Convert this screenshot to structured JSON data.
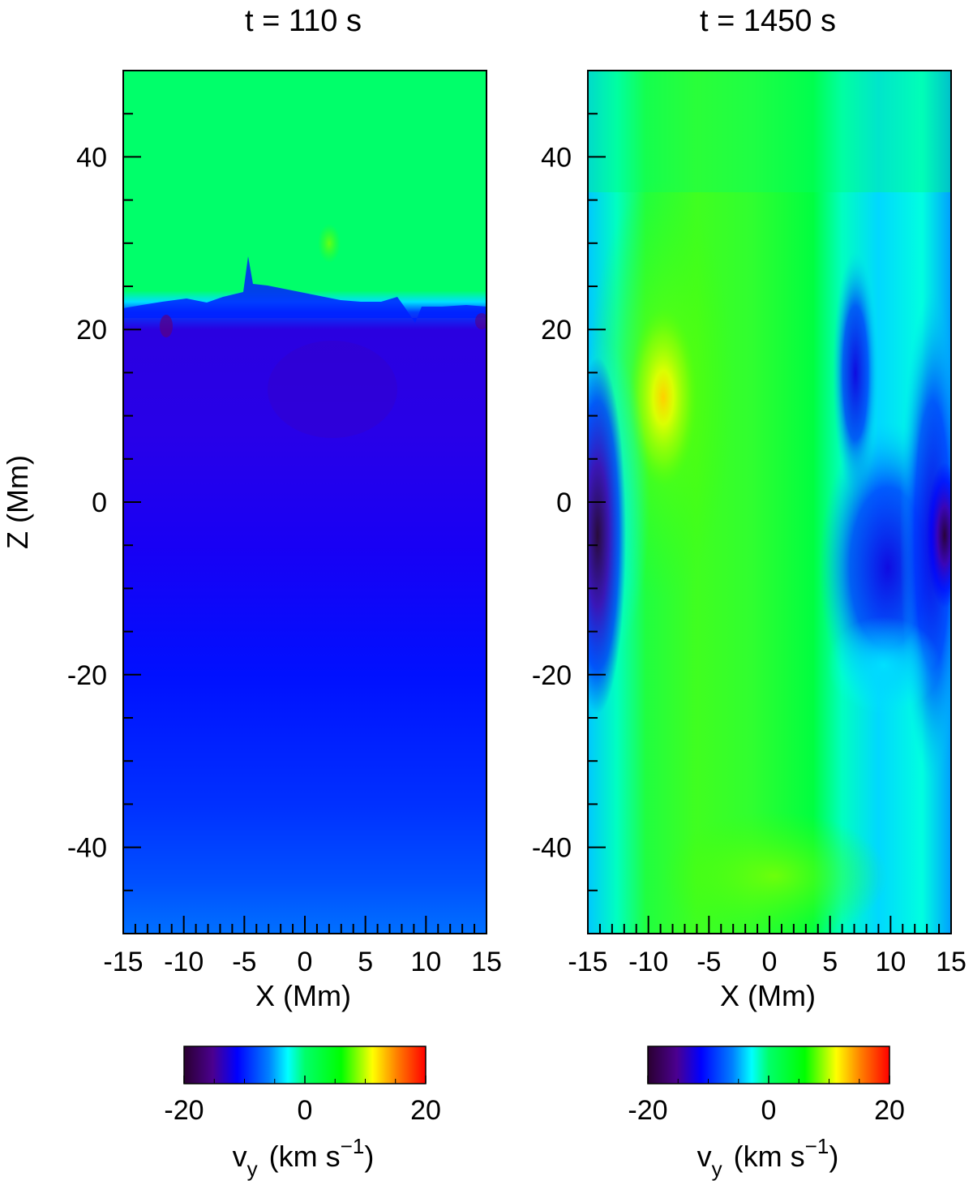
{
  "chart_data": [
    {
      "type": "heatmap",
      "title": "t = 110 s",
      "xlabel": "X (Mm)",
      "ylabel": "Z (Mm)",
      "xlim": [
        -15,
        15
      ],
      "ylim": [
        -50,
        50
      ],
      "x_ticks": [
        -15,
        -10,
        -5,
        0,
        5,
        10,
        15
      ],
      "y_ticks": [
        -40,
        -20,
        0,
        20,
        40
      ],
      "colorbar": {
        "label_main": "v",
        "label_sub": "y",
        "label_unit": "(km s",
        "label_exp": "−1",
        "label_close": ")",
        "range": [
          -20,
          20
        ],
        "ticks": [
          -20,
          0,
          20
        ],
        "colormap": [
          "#2a0030",
          "#4b0090",
          "#0000ff",
          "#00ffff",
          "#00ff6a",
          "#00ff00",
          "#ffff00",
          "#ff8000",
          "#ff0000"
        ]
      },
      "field_description_values": {
        "z_above_23": 0,
        "z_0_to_20": -15,
        "z_minus_45": -11
      },
      "profile_z": [
        -50,
        -45,
        -40,
        -30,
        -20,
        -10,
        0,
        10,
        15,
        20,
        22,
        23,
        24,
        26,
        50
      ],
      "profile_vy": [
        -10,
        -11,
        -12,
        -13.5,
        -14.5,
        -15,
        -15.5,
        -16,
        -16.5,
        -16,
        -14,
        -9,
        -3,
        0,
        0
      ]
    },
    {
      "type": "heatmap",
      "title": "t = 1450 s",
      "xlabel": "X (Mm)",
      "ylabel": "",
      "xlim": [
        -15,
        15
      ],
      "ylim": [
        -50,
        50
      ],
      "x_ticks": [
        -15,
        -10,
        -5,
        0,
        5,
        10,
        15
      ],
      "y_ticks": [
        -40,
        -20,
        0,
        20,
        40
      ],
      "colorbar": {
        "label_main": "v",
        "label_sub": "y",
        "label_unit": "(km s",
        "label_exp": "−1",
        "label_close": ")",
        "range": [
          -20,
          20
        ],
        "ticks": [
          -20,
          0,
          20
        ],
        "colormap": [
          "#2a0030",
          "#4b0090",
          "#0000ff",
          "#00ffff",
          "#00ff6a",
          "#00ff00",
          "#ffff00",
          "#ff8000",
          "#ff0000"
        ]
      },
      "features": [
        {
          "x": -14.5,
          "z": -3,
          "vy": -19
        },
        {
          "x": -9,
          "z": 12,
          "vy": 9
        },
        {
          "x": 7.5,
          "z": 17,
          "vy": -15
        },
        {
          "x": 14.5,
          "z": -4,
          "vy": -18
        },
        {
          "x": 10,
          "z": -5,
          "vy": -14
        }
      ]
    }
  ]
}
